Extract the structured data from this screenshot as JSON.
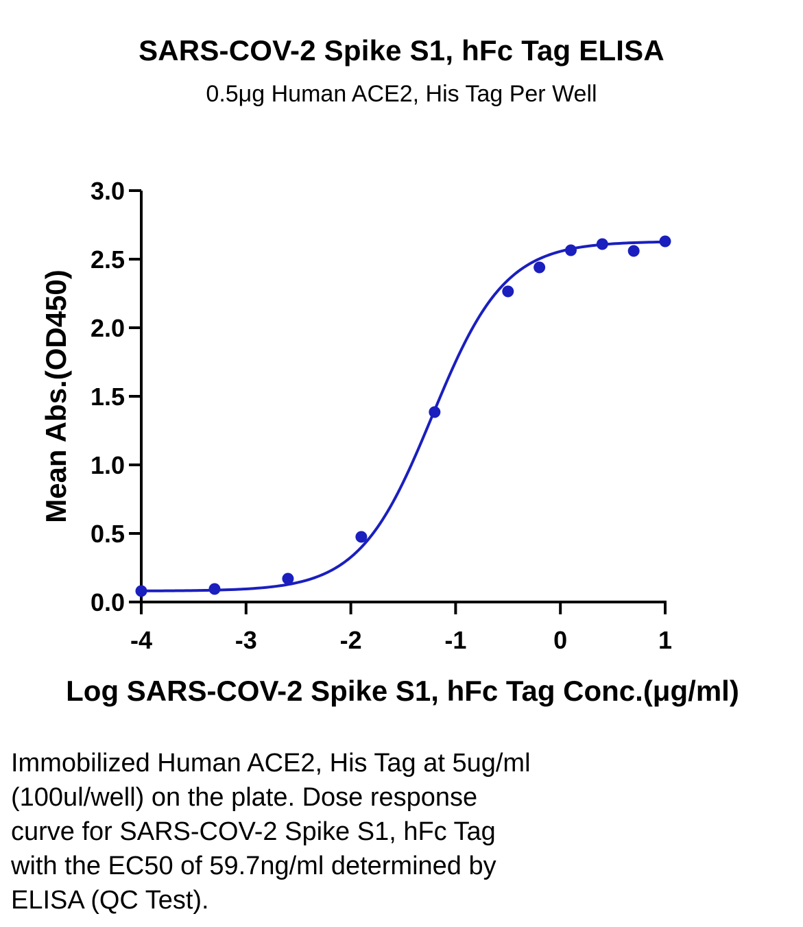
{
  "chart_data": {
    "type": "scatter",
    "title": "SARS-COV-2 Spike S1, hFc Tag ELISA",
    "subtitle": "0.5μg Human ACE2, His Tag Per Well",
    "xlabel": "Log SARS-COV-2 Spike S1, hFc Tag Conc.(μg/ml)",
    "ylabel": "Mean Abs.(OD450)",
    "xlim": [
      -4,
      1
    ],
    "ylim": [
      0,
      3.0
    ],
    "x_ticks": [
      -4,
      -3,
      -2,
      -1,
      0,
      1
    ],
    "x_tick_labels": [
      "-4",
      "-3",
      "-2",
      "-1",
      "0",
      "1"
    ],
    "y_ticks": [
      0,
      0.5,
      1.0,
      1.5,
      2.0,
      2.5,
      3.0
    ],
    "y_tick_labels": [
      "0.0",
      "0.5",
      "1.0",
      "1.5",
      "2.0",
      "2.5",
      "3.0"
    ],
    "grid": false,
    "color": "#1a1fbe",
    "series": [
      {
        "points": [
          {
            "x": -4.0,
            "y": 0.08
          },
          {
            "x": -3.3,
            "y": 0.095
          },
          {
            "x": -2.6,
            "y": 0.17
          },
          {
            "x": -1.9,
            "y": 0.475
          },
          {
            "x": -1.2,
            "y": 1.385
          },
          {
            "x": -0.5,
            "y": 2.265
          },
          {
            "x": -0.2,
            "y": 2.44
          },
          {
            "x": 0.1,
            "y": 2.565
          },
          {
            "x": 0.4,
            "y": 2.61
          },
          {
            "x": 0.7,
            "y": 2.56
          },
          {
            "x": 1.0,
            "y": 2.63
          }
        ],
        "fit": {
          "model": "4PL",
          "bottom": 0.08,
          "top": 2.63,
          "log_ec50": -1.224,
          "hill": 1.25
        }
      }
    ]
  },
  "caption": [
    "Immobilized Human ACE2, His Tag at 5ug/ml",
    "(100ul/well) on the plate. Dose response",
    "curve for SARS-COV-2 Spike S1, hFc Tag",
    "with the EC50 of 59.7ng/ml determined by",
    "ELISA (QC Test)."
  ]
}
